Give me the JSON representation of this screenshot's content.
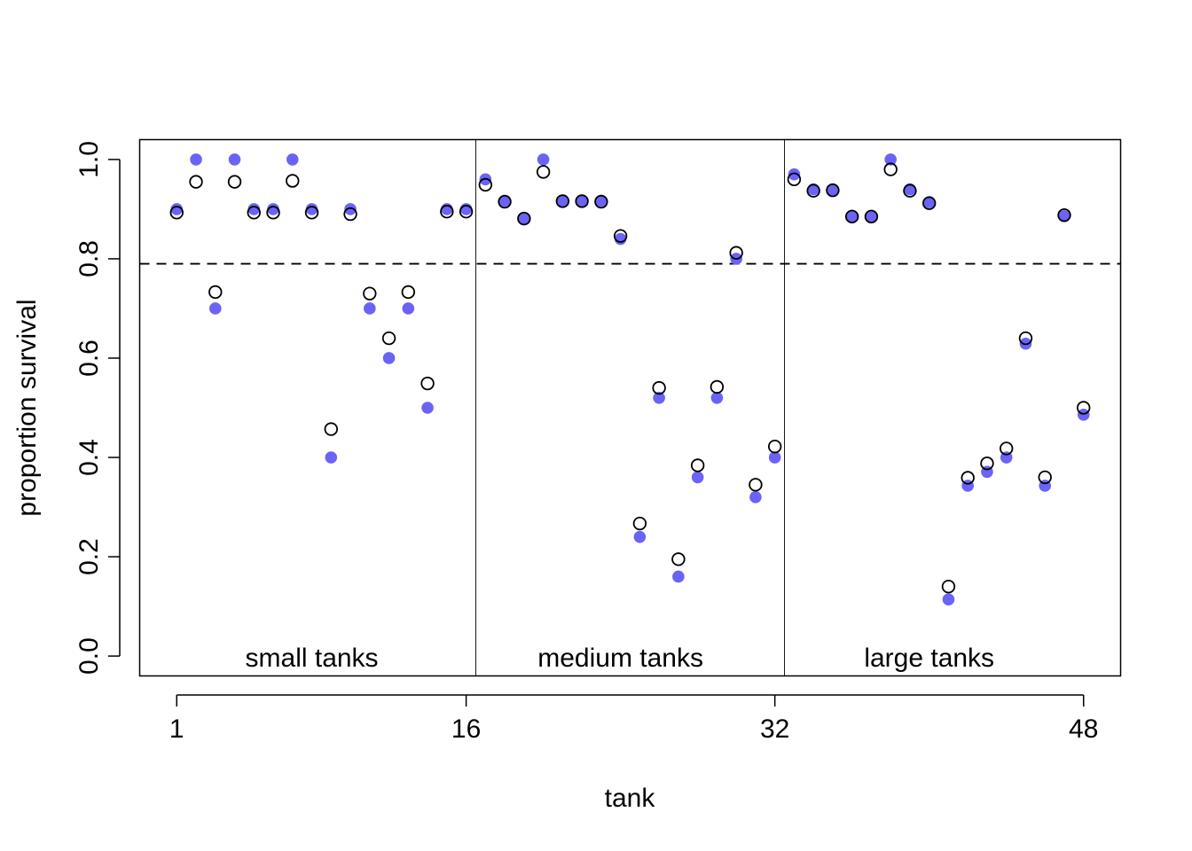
{
  "chart_data": {
    "type": "scatter",
    "xlabel": "tank",
    "ylabel": "proportion survival",
    "xlim": [
      -0.92,
      49.92
    ],
    "ylim": [
      -0.04,
      1.04
    ],
    "x_ticks": [
      "1",
      "16",
      "32",
      "48"
    ],
    "y_ticks": [
      "0.0",
      "0.2",
      "0.4",
      "0.6",
      "0.8",
      "1.0"
    ],
    "reference_line": {
      "y": 0.79,
      "style": "dashed"
    },
    "dividers": [
      16.5,
      32.5
    ],
    "group_labels": [
      {
        "text": "small tanks",
        "x": 8
      },
      {
        "text": "medium tanks",
        "x": 24
      },
      {
        "text": "large tanks",
        "x": 40
      }
    ],
    "colors": {
      "raw": "#6b63f5",
      "posterior_edge": "#000000",
      "posterior_fill": "none"
    },
    "grid": false,
    "legend": "none",
    "series": [
      {
        "marker": "filled-circle",
        "x": [
          1,
          2,
          3,
          4,
          5,
          6,
          7,
          8,
          9,
          10,
          11,
          12,
          13,
          14,
          15,
          16,
          17,
          18,
          19,
          20,
          21,
          22,
          23,
          24,
          25,
          26,
          27,
          28,
          29,
          30,
          31,
          32,
          33,
          34,
          35,
          36,
          37,
          38,
          39,
          40,
          41,
          42,
          43,
          44,
          45,
          46,
          47,
          48
        ],
        "values": [
          0.9,
          1.0,
          0.7,
          1.0,
          0.9,
          0.9,
          1.0,
          0.9,
          0.4,
          0.9,
          0.7,
          0.6,
          0.7,
          0.5,
          0.9,
          0.9,
          0.96,
          0.917,
          0.88,
          1.0,
          0.917,
          0.917,
          0.917,
          0.84,
          0.24,
          0.52,
          0.16,
          0.36,
          0.52,
          0.8,
          0.32,
          0.4,
          0.97,
          0.94,
          0.94,
          0.886,
          0.886,
          1.0,
          0.94,
          0.914,
          0.114,
          0.343,
          0.371,
          0.4,
          0.629,
          0.343,
          0.886,
          0.486
        ]
      },
      {
        "marker": "open-circle",
        "x": [
          1,
          2,
          3,
          4,
          5,
          6,
          7,
          8,
          9,
          10,
          11,
          12,
          13,
          14,
          15,
          16,
          17,
          18,
          19,
          20,
          21,
          22,
          23,
          24,
          25,
          26,
          27,
          28,
          29,
          30,
          31,
          32,
          33,
          34,
          35,
          36,
          37,
          38,
          39,
          40,
          41,
          42,
          43,
          44,
          45,
          46,
          47,
          48
        ],
        "values": [
          0.893,
          0.955,
          0.733,
          0.955,
          0.893,
          0.893,
          0.957,
          0.893,
          0.457,
          0.89,
          0.73,
          0.64,
          0.733,
          0.549,
          0.895,
          0.895,
          0.949,
          0.915,
          0.881,
          0.975,
          0.916,
          0.916,
          0.915,
          0.846,
          0.267,
          0.54,
          0.195,
          0.384,
          0.542,
          0.812,
          0.345,
          0.422,
          0.96,
          0.937,
          0.938,
          0.885,
          0.885,
          0.98,
          0.937,
          0.912,
          0.14,
          0.359,
          0.388,
          0.418,
          0.64,
          0.36,
          0.888,
          0.5
        ]
      }
    ]
  }
}
